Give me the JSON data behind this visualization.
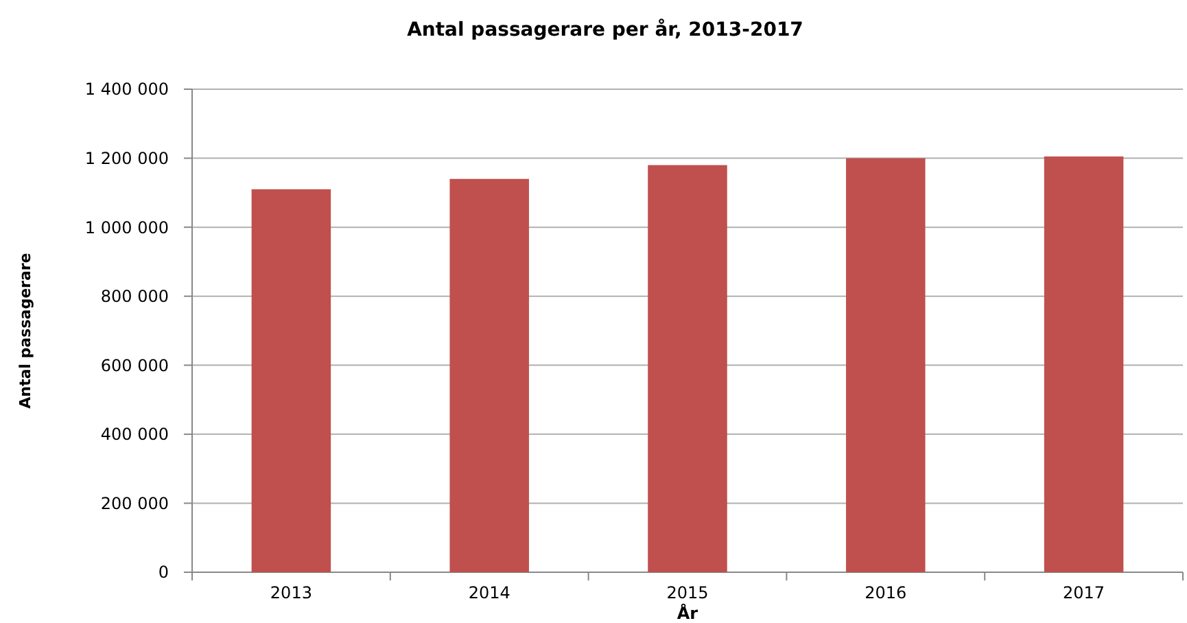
{
  "chart_data": {
    "type": "bar",
    "title": "Antal passagerare per år, 2013-2017",
    "xlabel": "År",
    "ylabel": "Antal passagerare",
    "categories": [
      "2013",
      "2014",
      "2015",
      "2016",
      "2017"
    ],
    "values": [
      1110000,
      1140000,
      1180000,
      1200000,
      1205000
    ],
    "color": "#c0504d",
    "ylim": [
      0,
      1400000
    ],
    "yticks": [
      {
        "value": 0,
        "label": "0"
      },
      {
        "value": 200000,
        "label": "200 000"
      },
      {
        "value": 400000,
        "label": "400 000"
      },
      {
        "value": 600000,
        "label": "600 000"
      },
      {
        "value": 800000,
        "label": "800 000"
      },
      {
        "value": 1000000,
        "label": "1 000 000"
      },
      {
        "value": 1200000,
        "label": "1 200 000"
      },
      {
        "value": 1400000,
        "label": "1 400 000"
      }
    ],
    "grid": "y"
  }
}
